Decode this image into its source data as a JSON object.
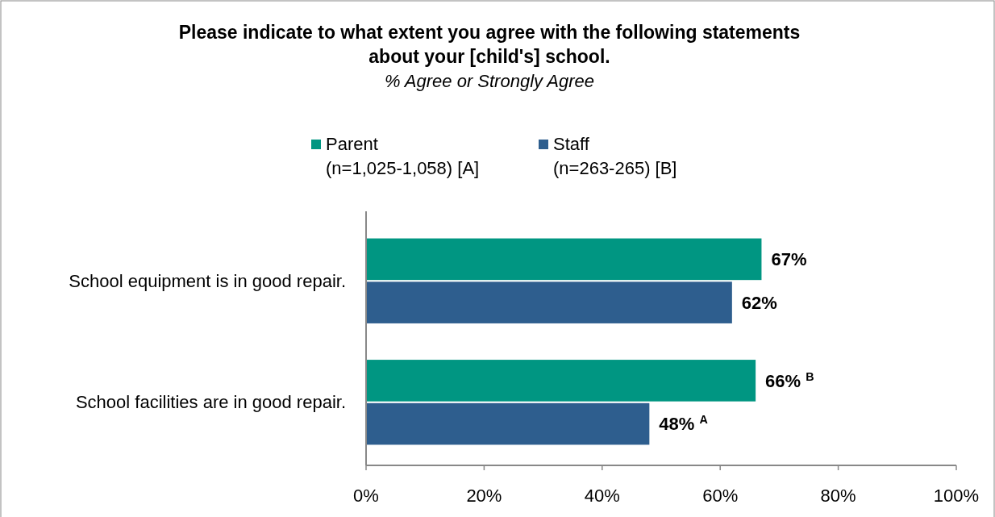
{
  "chart_data": {
    "type": "bar",
    "orientation": "horizontal",
    "title": "Please indicate to what extent you agree with the following statements\nabout your [child's] school.",
    "subtitle": "% Agree or Strongly Agree",
    "categories": [
      "School equipment is in good repair.",
      "School facilities are in good repair."
    ],
    "series": [
      {
        "name": "Parent\n(n=1,025-1,058) [A]",
        "color": "#009682",
        "values": [
          67,
          66
        ],
        "value_labels": [
          "67%",
          "66% $^{B}$"
        ]
      },
      {
        "name": "Staff\n(n=263-265) [B]",
        "color": "#2e5e8e",
        "values": [
          62,
          48
        ],
        "value_labels": [
          "62%",
          "48% $^{A}$"
        ]
      }
    ],
    "xlim": [
      0,
      100
    ],
    "xticks": [
      {
        "value": 0,
        "label": "0%"
      },
      {
        "value": 20,
        "label": "20%"
      },
      {
        "value": 40,
        "label": "40%"
      },
      {
        "value": 60,
        "label": "60%"
      },
      {
        "value": 80,
        "label": "80%"
      },
      {
        "value": 100,
        "label": "100%"
      }
    ],
    "grid": false,
    "legend": "top"
  }
}
